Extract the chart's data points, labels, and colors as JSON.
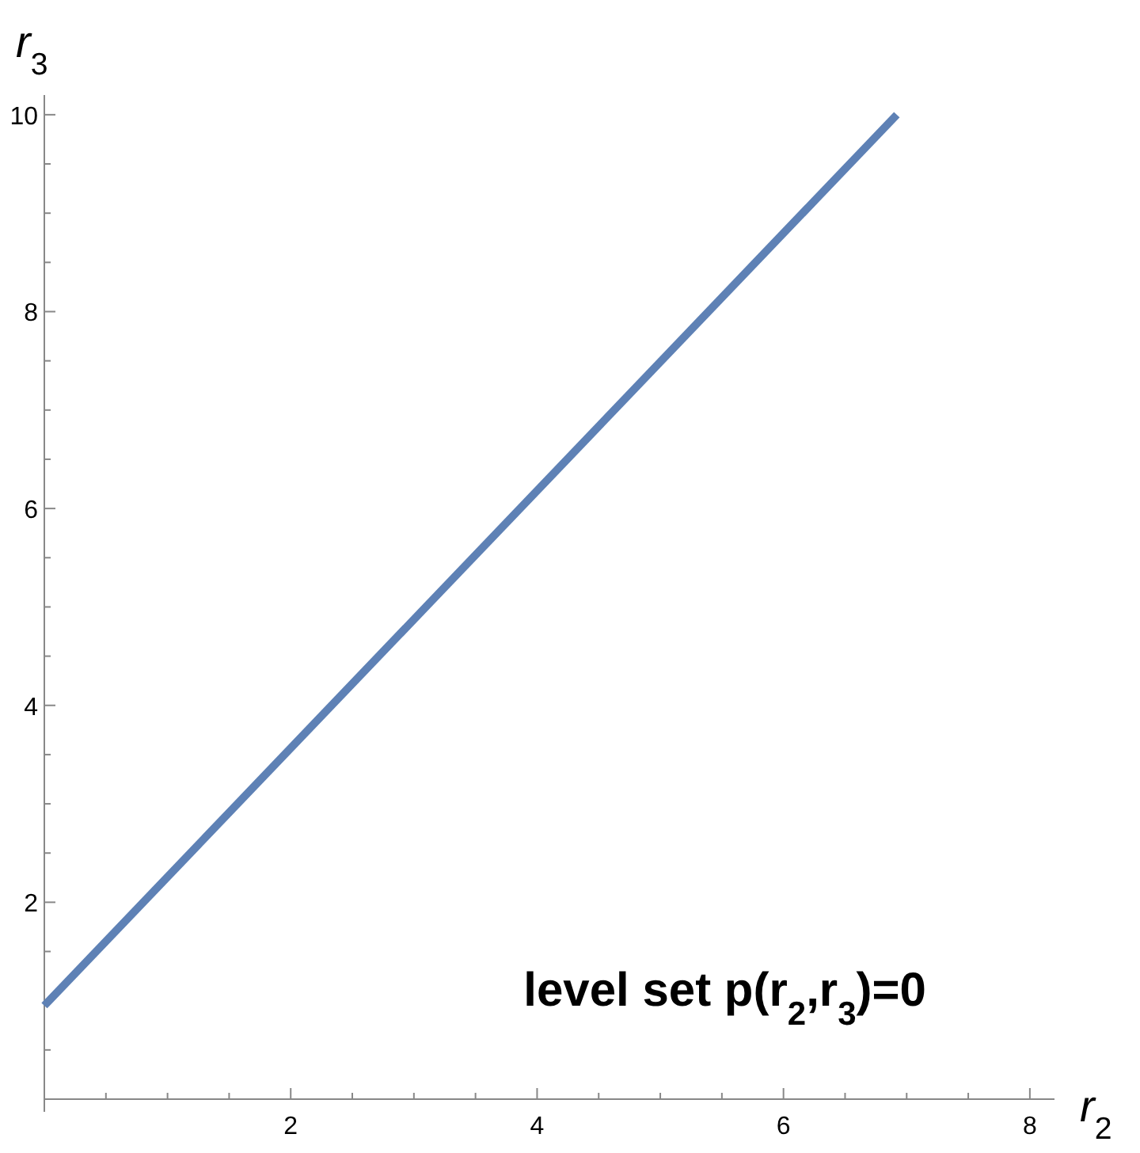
{
  "chart_data": {
    "type": "line",
    "xlabel": "r$_{2}$",
    "ylabel": "r$_{3}$",
    "x": [
      0,
      6.92
    ],
    "series": [
      {
        "color": "#5e81b5",
        "values": [
          0.95,
          10
        ]
      }
    ],
    "xlim": [
      0,
      8.2
    ],
    "ylim": [
      0,
      10.2
    ],
    "xticks": [
      {
        "value": 0.5,
        "label": null
      },
      {
        "value": 1,
        "label": null
      },
      {
        "value": 1.5,
        "label": null
      },
      2,
      {
        "value": 2.5,
        "label": null
      },
      {
        "value": 3,
        "label": null
      },
      {
        "value": 3.5,
        "label": null
      },
      4,
      {
        "value": 4.5,
        "label": null
      },
      {
        "value": 5,
        "label": null
      },
      {
        "value": 5.5,
        "label": null
      },
      6,
      {
        "value": 6.5,
        "label": null
      },
      {
        "value": 7,
        "label": null
      },
      {
        "value": 7.5,
        "label": null
      },
      8
    ],
    "yticks": [
      {
        "value": 0.5,
        "label": null
      },
      {
        "value": 1,
        "label": null
      },
      {
        "value": 1.5,
        "label": null
      },
      2,
      {
        "value": 2.5,
        "label": null
      },
      {
        "value": 3,
        "label": null
      },
      {
        "value": 3.5,
        "label": null
      },
      4,
      {
        "value": 4.5,
        "label": null
      },
      {
        "value": 5,
        "label": null
      },
      {
        "value": 5.5,
        "label": null
      },
      6,
      {
        "value": 6.5,
        "label": null
      },
      {
        "value": 7,
        "label": null
      },
      {
        "value": 7.5,
        "label": null
      },
      8,
      {
        "value": 8.5,
        "label": null
      },
      {
        "value": 9,
        "label": null
      },
      {
        "value": 9.5,
        "label": null
      },
      10
    ],
    "grid": false,
    "marker": "none",
    "line_style": "solid",
    "annotations": [
      "level set p(r$_{2}$,r$_{3}$)=0"
    ]
  }
}
